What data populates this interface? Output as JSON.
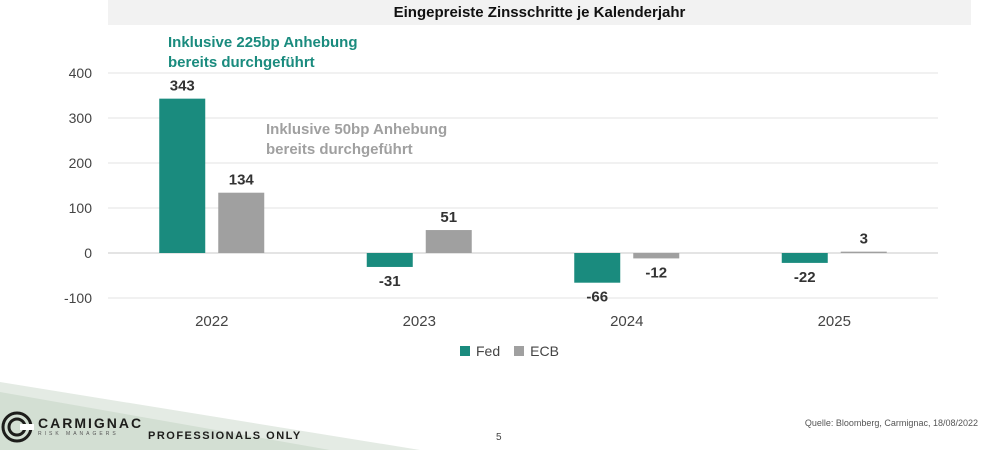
{
  "chart_data": {
    "type": "bar",
    "title": "Eingepreiste Zinsschritte je Kalenderjahr",
    "categories": [
      "2022",
      "2023",
      "2024",
      "2025"
    ],
    "series": [
      {
        "name": "Fed",
        "values": [
          343,
          -31,
          -66,
          -22
        ],
        "labels": [
          "343",
          "-31",
          "-66",
          "-22"
        ],
        "color": "#1a8b7e"
      },
      {
        "name": "ECB",
        "values": [
          134,
          51,
          -12,
          3
        ],
        "labels": [
          "134",
          "51",
          "-12",
          "3"
        ],
        "color": "#a0a0a0"
      }
    ],
    "ylim": [
      -100,
      400
    ],
    "yticks": [
      400,
      300,
      200,
      100,
      0,
      -100
    ],
    "ytick_labels": [
      "400",
      "300",
      "200",
      "100",
      "0",
      "-100"
    ],
    "grid": true,
    "legend_position": "bottom"
  },
  "annotations": {
    "fed": [
      "Inklusive 225bp Anhebung",
      "bereits durchgeführt"
    ],
    "ecb": [
      "Inklusive 50bp Anhebung",
      "bereits durchgeführt"
    ],
    "fed_color": "#1a8b7e",
    "ecb_color": "#a0a0a0"
  },
  "footer": {
    "brand": "CARMIGNAC",
    "brand_sub": "RISK MANAGERS",
    "tagline": "PROFESSIONALS ONLY",
    "page": "5",
    "source": "Quelle: Bloomberg, Carmignac, 18/08/2022"
  }
}
